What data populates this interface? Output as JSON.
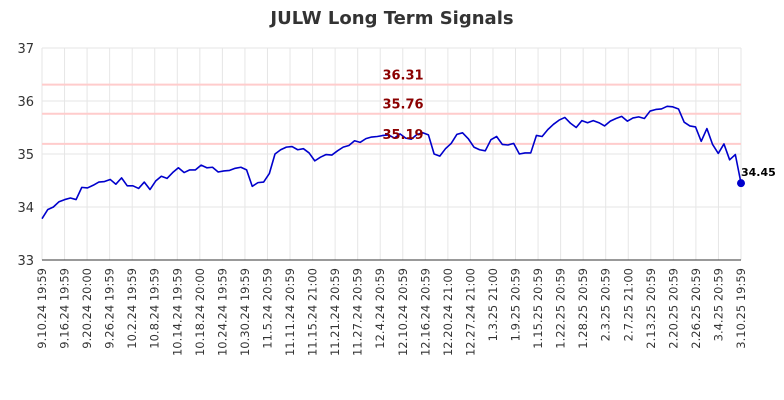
{
  "chart_data": {
    "type": "line",
    "title": "JULW Long Term Signals",
    "xlabel": "",
    "ylabel": "",
    "ylim": [
      33,
      37
    ],
    "yticks": [
      33,
      34,
      35,
      36,
      37
    ],
    "grid": true,
    "x_tick_labels": [
      "9.10.24 19:59",
      "9.16.24 19:59",
      "9.20.24 20:00",
      "9.26.24 19:59",
      "10.2.24 19:59",
      "10.8.24 19:59",
      "10.14.24 19:59",
      "10.18.24 20:00",
      "10.24.24 19:59",
      "10.30.24 19:59",
      "11.5.24 20:59",
      "11.11.24 20:59",
      "11.15.24 21:00",
      "11.21.24 20:59",
      "11.27.24 20:59",
      "12.4.24 20:59",
      "12.10.24 20:59",
      "12.16.24 20:59",
      "12.20.24 21:00",
      "12.27.24 21:00",
      "1.3.25 21:00",
      "1.9.25 20:59",
      "1.15.25 20:59",
      "1.22.25 20:59",
      "1.28.25 20:59",
      "2.3.25 20:59",
      "2.7.25 21:00",
      "2.13.25 20:59",
      "2.20.25 20:59",
      "2.26.25 20:59",
      "3.4.25 20:59",
      "3.10.25 19:59"
    ],
    "horizontal_lines": [
      {
        "value": 36.31,
        "label": "36.31",
        "color": "#ffcccc"
      },
      {
        "value": 35.76,
        "label": "35.76",
        "color": "#ffcccc"
      },
      {
        "value": 35.19,
        "label": "35.19",
        "color": "#ffcccc"
      }
    ],
    "series": [
      {
        "color": "#0000cc",
        "values": [
          33.78,
          33.95,
          34.0,
          34.1,
          34.14,
          34.17,
          34.14,
          34.37,
          34.36,
          34.41,
          34.47,
          34.48,
          34.52,
          34.43,
          34.55,
          34.4,
          34.4,
          34.35,
          34.47,
          34.33,
          34.49,
          34.58,
          34.54,
          34.65,
          34.74,
          34.65,
          34.7,
          34.7,
          34.79,
          34.74,
          34.75,
          34.66,
          34.68,
          34.69,
          34.73,
          34.75,
          34.7,
          34.39,
          34.46,
          34.47,
          34.63,
          35.0,
          35.08,
          35.13,
          35.14,
          35.08,
          35.1,
          35.02,
          34.87,
          34.94,
          34.99,
          34.98,
          35.06,
          35.13,
          35.16,
          35.25,
          35.22,
          35.29,
          35.32,
          35.33,
          35.35,
          35.36,
          35.3,
          35.38,
          35.3,
          35.28,
          35.37,
          35.4,
          35.36,
          35.0,
          34.96,
          35.1,
          35.2,
          35.37,
          35.4,
          35.29,
          35.13,
          35.08,
          35.06,
          35.27,
          35.33,
          35.18,
          35.17,
          35.2,
          35.0,
          35.02,
          35.02,
          35.35,
          35.33,
          35.46,
          35.56,
          35.64,
          35.69,
          35.58,
          35.5,
          35.63,
          35.59,
          35.63,
          35.59,
          35.53,
          35.62,
          35.67,
          35.71,
          35.62,
          35.68,
          35.7,
          35.67,
          35.81,
          35.84,
          35.85,
          35.9,
          35.89,
          35.85,
          35.6,
          35.53,
          35.51,
          35.24,
          35.48,
          35.18,
          35.01,
          35.19,
          34.89,
          34.99,
          34.45
        ],
        "last_value_label": "34.45"
      }
    ]
  }
}
